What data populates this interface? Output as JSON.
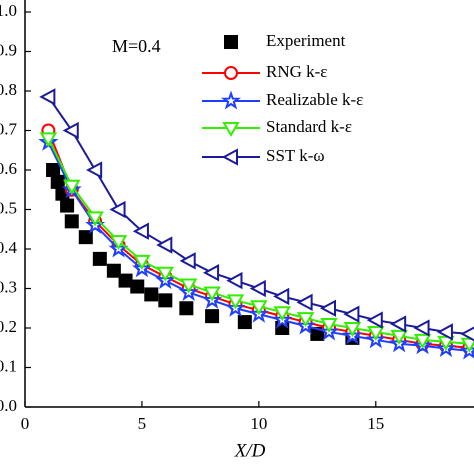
{
  "chart_data": {
    "type": "line",
    "annotation": "M=0.4",
    "x_label": "X/D",
    "xlim": [
      0,
      19.2
    ],
    "ylim": [
      0,
      1.0
    ],
    "xticks": [
      0,
      5,
      10,
      15
    ],
    "yticks": [
      {
        "value": 0,
        "label": "0.0"
      },
      0.1,
      0.2,
      0.3,
      0.4,
      0.5,
      0.6,
      0.7,
      0.8,
      0.9,
      {
        "value": 1,
        "label": "1.0"
      }
    ],
    "series": [
      {
        "name": "Experiment",
        "color": "#000000",
        "marker": "square",
        "line": false,
        "x": [
          1.2,
          1.4,
          1.6,
          1.8,
          2.0,
          2.6,
          3.2,
          3.8,
          4.3,
          4.8,
          5.4,
          6.0,
          6.9,
          8.0,
          9.4,
          11.0,
          12.5,
          14.0
        ],
        "values": [
          0.6,
          0.57,
          0.54,
          0.51,
          0.47,
          0.43,
          0.375,
          0.345,
          0.32,
          0.305,
          0.285,
          0.27,
          0.25,
          0.23,
          0.215,
          0.2,
          0.185,
          0.175
        ]
      },
      {
        "name": "RNG k-ε",
        "color": "#ff0000",
        "marker": "circle",
        "line": true,
        "x": [
          1,
          2,
          3,
          4,
          5,
          6,
          7,
          8,
          9,
          10,
          11,
          12,
          13,
          14,
          15,
          16,
          17,
          18,
          19
        ],
        "values": [
          0.7,
          0.55,
          0.47,
          0.41,
          0.36,
          0.33,
          0.3,
          0.28,
          0.26,
          0.245,
          0.23,
          0.215,
          0.2,
          0.19,
          0.18,
          0.17,
          0.16,
          0.155,
          0.15
        ]
      },
      {
        "name": "Realizable k-ε",
        "color": "#1f3fff",
        "marker": "star",
        "line": true,
        "x": [
          1,
          2,
          3,
          4,
          5,
          6,
          7,
          8,
          9,
          10,
          11,
          12,
          13,
          14,
          15,
          16,
          17,
          18,
          19
        ],
        "values": [
          0.67,
          0.55,
          0.46,
          0.4,
          0.35,
          0.32,
          0.29,
          0.27,
          0.25,
          0.235,
          0.22,
          0.205,
          0.19,
          0.18,
          0.17,
          0.16,
          0.155,
          0.148,
          0.142
        ]
      },
      {
        "name": "Standard k-ε",
        "color": "#33ee00",
        "marker": "triangle-down",
        "line": true,
        "x": [
          1,
          2,
          3,
          4,
          5,
          6,
          7,
          8,
          9,
          10,
          11,
          12,
          13,
          14,
          15,
          16,
          17,
          18,
          19
        ],
        "values": [
          0.68,
          0.56,
          0.48,
          0.42,
          0.37,
          0.34,
          0.31,
          0.29,
          0.27,
          0.255,
          0.24,
          0.225,
          0.21,
          0.2,
          0.19,
          0.18,
          0.17,
          0.165,
          0.16
        ]
      },
      {
        "name": "SST k-ω",
        "color": "#1a1a9a",
        "marker": "triangle-left",
        "line": true,
        "x": [
          1,
          2,
          3,
          4,
          5,
          6,
          7,
          8,
          9,
          10,
          11,
          12,
          13,
          14,
          15,
          16,
          17,
          18,
          19
        ],
        "values": [
          0.785,
          0.7,
          0.6,
          0.5,
          0.445,
          0.41,
          0.37,
          0.34,
          0.32,
          0.3,
          0.28,
          0.265,
          0.25,
          0.235,
          0.22,
          0.21,
          0.2,
          0.19,
          0.185
        ]
      }
    ]
  }
}
